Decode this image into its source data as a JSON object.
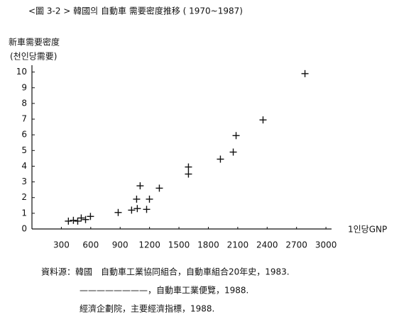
{
  "chart_data": {
    "type": "scatter",
    "title": "<圖 3-2 > 韓國의 自動車 需要密度推移 ( 1970~1987)",
    "y_label": "新車需要密度",
    "y_label_sub": "(천인당需要)",
    "x_label": "1인당GNP",
    "x": [
      372,
      423,
      467,
      503,
      547,
      597,
      880,
      1017,
      1075,
      1068,
      1104,
      1170,
      1199,
      1300,
      1597,
      1597,
      1923,
      2054,
      2083,
      2358,
      2786
    ],
    "values": [
      0.5,
      0.55,
      0.5,
      0.7,
      0.6,
      0.8,
      1.05,
      1.2,
      1.3,
      1.9,
      2.75,
      1.25,
      1.9,
      2.6,
      3.5,
      3.95,
      4.45,
      4.9,
      5.95,
      6.95,
      9.9
    ],
    "color": "#111111",
    "xlim": [
      0,
      3050
    ],
    "ylim": [
      0,
      10.3
    ],
    "xticks": [
      300,
      600,
      900,
      1200,
      1500,
      1800,
      2100,
      2400,
      2700,
      3000
    ],
    "yticks": [
      0,
      1,
      2,
      3,
      4,
      5,
      6,
      7,
      8,
      9,
      10
    ],
    "notes": [
      "資料源：韓國　自動車工業協同組合，自動車組合20年史，1983.",
      "————————，自動車工業便覽，1988.",
      "經濟企劃院，主要經濟指標，1988."
    ]
  }
}
